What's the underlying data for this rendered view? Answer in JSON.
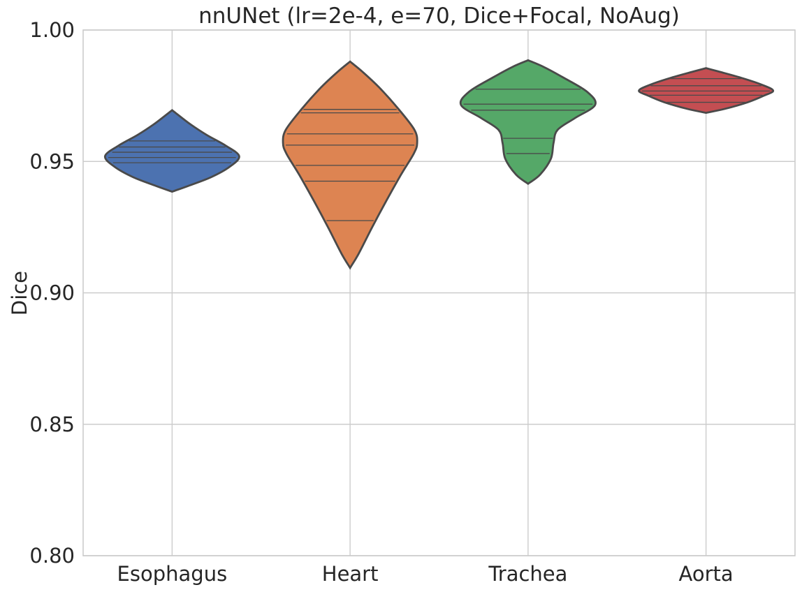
{
  "chart_data": {
    "type": "violin",
    "title": "nnUNet (lr=2e-4, e=70, Dice+Focal, NoAug)",
    "xlabel": "",
    "ylabel": "Dice",
    "ylim": [
      0.8,
      1.0
    ],
    "yticks": [
      "0.80",
      "0.85",
      "0.90",
      "0.95",
      "1.00"
    ],
    "grid": true,
    "categories": [
      "Esophagus",
      "Heart",
      "Trachea",
      "Aorta"
    ],
    "series": [
      {
        "category": "Esophagus",
        "color": "#4c72b0",
        "min": 0.9385,
        "max": 0.9695,
        "inner_lines": [
          0.9495,
          0.9515,
          0.9535,
          0.9555,
          0.9578
        ],
        "profile": [
          [
            0.9385,
            0
          ],
          [
            0.9405,
            0.22
          ],
          [
            0.944,
            0.58
          ],
          [
            0.948,
            0.86
          ],
          [
            0.952,
            1.0
          ],
          [
            0.956,
            0.8
          ],
          [
            0.96,
            0.52
          ],
          [
            0.964,
            0.28
          ],
          [
            0.9675,
            0.1
          ],
          [
            0.9695,
            0
          ]
        ]
      },
      {
        "category": "Heart",
        "color": "#dd8452",
        "min": 0.9095,
        "max": 0.988,
        "inner_lines": [
          0.9275,
          0.9425,
          0.9485,
          0.9562,
          0.9605,
          0.9685,
          0.9698
        ],
        "profile": [
          [
            0.9095,
            0
          ],
          [
            0.915,
            0.13
          ],
          [
            0.925,
            0.33
          ],
          [
            0.935,
            0.54
          ],
          [
            0.945,
            0.76
          ],
          [
            0.953,
            0.95
          ],
          [
            0.957,
            1.0
          ],
          [
            0.962,
            0.96
          ],
          [
            0.97,
            0.72
          ],
          [
            0.978,
            0.44
          ],
          [
            0.984,
            0.19
          ],
          [
            0.988,
            0
          ]
        ]
      },
      {
        "category": "Trachea",
        "color": "#55a868",
        "min": 0.9415,
        "max": 0.9885,
        "inner_lines": [
          0.953,
          0.9588,
          0.9695,
          0.9718,
          0.9775
        ],
        "profile": [
          [
            0.9415,
            0
          ],
          [
            0.945,
            0.18
          ],
          [
            0.951,
            0.34
          ],
          [
            0.957,
            0.38
          ],
          [
            0.962,
            0.44
          ],
          [
            0.9665,
            0.7
          ],
          [
            0.9715,
            1.0
          ],
          [
            0.9765,
            0.88
          ],
          [
            0.982,
            0.52
          ],
          [
            0.986,
            0.23
          ],
          [
            0.9885,
            0
          ]
        ]
      },
      {
        "category": "Aorta",
        "color": "#c44e52",
        "min": 0.9685,
        "max": 0.9855,
        "inner_lines": [
          0.9725,
          0.9752,
          0.9768,
          0.9788,
          0.9815
        ],
        "profile": [
          [
            0.9685,
            0
          ],
          [
            0.97,
            0.28
          ],
          [
            0.9725,
            0.62
          ],
          [
            0.975,
            0.86
          ],
          [
            0.977,
            1.0
          ],
          [
            0.9795,
            0.8
          ],
          [
            0.982,
            0.5
          ],
          [
            0.984,
            0.22
          ],
          [
            0.9855,
            0
          ]
        ]
      }
    ]
  }
}
